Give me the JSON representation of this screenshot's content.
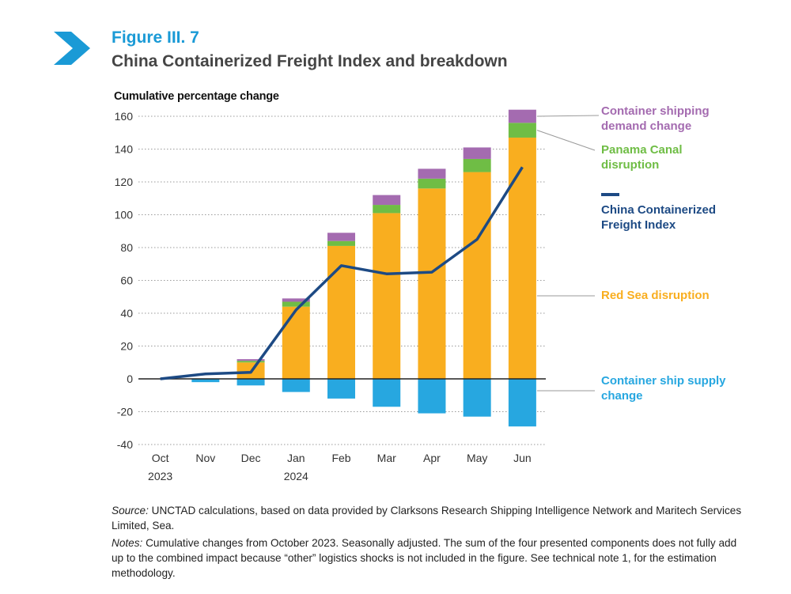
{
  "figure_label": "Figure III. 7",
  "figure_title": "China Containerized Freight Index and breakdown",
  "source_lead": "Source:",
  "source_text": " UNCTAD calculations, based on data provided by Clarksons Research Shipping Intelligence Network and Maritech Services Limited, Sea.",
  "notes_lead": "Notes:",
  "notes_text": " Cumulative changes from October 2023. Seasonally adjusted. The sum of the four presented components does not fully add up to the combined impact because “other” logistics shocks is not included in the figure. See technical note 1, for the estimation methodology.",
  "icon": "chevron-right-arrow-icon",
  "colors": {
    "accent": "#1a9ad6",
    "red_sea": "#f9ae1f",
    "panama": "#6fbd45",
    "demand": "#a46bb0",
    "supply": "#27a7e0",
    "index_line": "#1d4a84"
  },
  "chart_data": {
    "type": "bar",
    "stacked": true,
    "ylabel": "Cumulative percentage change",
    "ylim": [
      -40,
      160
    ],
    "yticks": [
      160,
      140,
      120,
      100,
      80,
      60,
      40,
      20,
      0,
      -20,
      -40
    ],
    "grid": "dotted horizontal",
    "legend_position": "right",
    "categories": [
      [
        "Oct",
        "2023"
      ],
      [
        "Nov",
        ""
      ],
      [
        "Dec",
        ""
      ],
      [
        "Jan",
        "2024"
      ],
      [
        "Feb",
        ""
      ],
      [
        "Mar",
        ""
      ],
      [
        "Apr",
        ""
      ],
      [
        "May",
        ""
      ],
      [
        "Jun",
        ""
      ]
    ],
    "series": [
      {
        "name": "Container ship supply change",
        "color": "#27a7e0",
        "legend_lines": [
          "Container ship supply",
          "change"
        ],
        "values": [
          0,
          -2,
          -4,
          -8,
          -12,
          -17,
          -21,
          -23,
          -29
        ]
      },
      {
        "name": "Red Sea disruption",
        "color": "#f9ae1f",
        "legend_lines": [
          "Red Sea disruption"
        ],
        "values": [
          0,
          0,
          10,
          44,
          81,
          101,
          116,
          126,
          147
        ]
      },
      {
        "name": "Panama Canal disruption",
        "color": "#6fbd45",
        "legend_lines": [
          "Panama Canal",
          "disruption"
        ],
        "values": [
          0,
          0,
          1,
          3,
          3,
          5,
          6,
          8,
          9
        ]
      },
      {
        "name": "Container shipping demand change",
        "color": "#a46bb0",
        "legend_lines": [
          "Container shipping",
          "demand change"
        ],
        "values": [
          0,
          0,
          1,
          2,
          5,
          6,
          6,
          7,
          8
        ]
      }
    ],
    "line": {
      "name": "China Containerized Freight Index",
      "color": "#1d4a84",
      "legend_lines": [
        "China Containerized",
        "Freight Index"
      ],
      "values": [
        0,
        3,
        4,
        42,
        69,
        64,
        65,
        85,
        129
      ]
    }
  }
}
